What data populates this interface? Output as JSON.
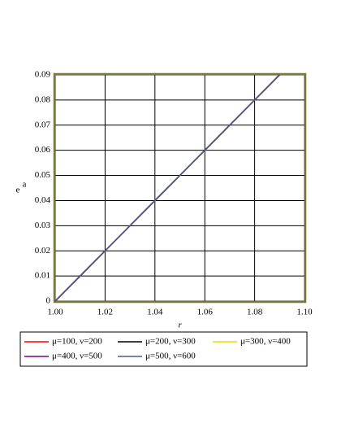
{
  "chart_data": {
    "type": "line",
    "xlabel": "r",
    "ylabel": "e",
    "ylabel_superscript": "a",
    "series": [
      {
        "name": "μ=100, ν=200",
        "color": "#ff0000",
        "x": [
          1,
          1.09
        ],
        "values": [
          0,
          0.09
        ]
      },
      {
        "name": "μ=200, ν=300",
        "color": "#000000",
        "x": [
          1,
          1.09
        ],
        "values": [
          0,
          0.09
        ]
      },
      {
        "name": "μ=300, ν=400",
        "color": "#f0d800",
        "x": [
          1,
          1.09
        ],
        "values": [
          0,
          0.09
        ]
      },
      {
        "name": "μ=400, ν=500",
        "color": "#800080",
        "x": [
          1,
          1.09
        ],
        "values": [
          0,
          0.09
        ]
      },
      {
        "name": "μ=500, ν=600",
        "color": "#4e5a8c",
        "x": [
          1,
          1.09
        ],
        "values": [
          0,
          0.09
        ]
      }
    ],
    "xlim": [
      1,
      1.1
    ],
    "xticks": [
      {
        "value": 1,
        "label": "1.00"
      },
      {
        "value": 1.02,
        "label": "1.02"
      },
      {
        "value": 1.04,
        "label": "1.04"
      },
      {
        "value": 1.06,
        "label": "1.06"
      },
      {
        "value": 1.08,
        "label": "1.08"
      },
      {
        "value": 1.1,
        "label": "1.10"
      }
    ],
    "ylim": [
      0,
      0.09
    ],
    "yticks": [
      0,
      0.01,
      0.02,
      0.03,
      0.04,
      0.05,
      0.06,
      0.07,
      0.08,
      0.09
    ],
    "grid": true
  }
}
